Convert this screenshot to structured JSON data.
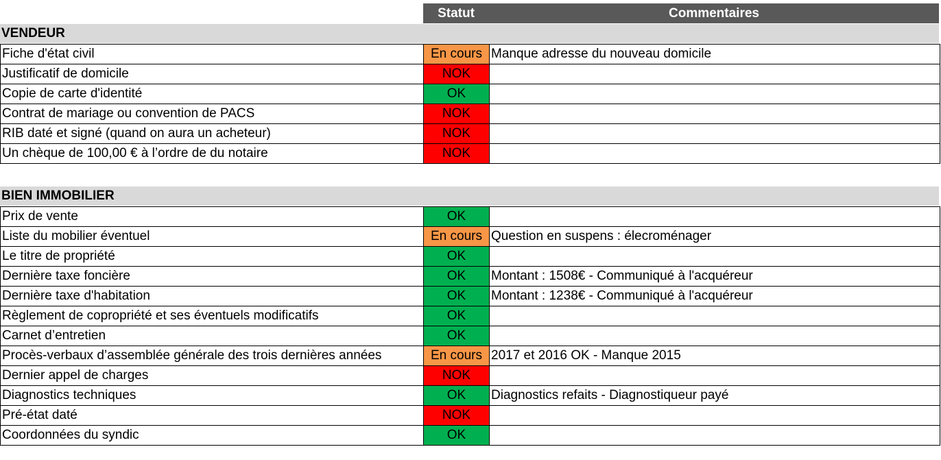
{
  "headers": {
    "status": "Statut",
    "comments": "Commentaires"
  },
  "status_colors": {
    "OK": "#00b050",
    "NOK": "#ff0000",
    "En cours": "#f79646"
  },
  "sections": [
    {
      "title": "VENDEUR",
      "rows": [
        {
          "label": "Fiche d'état civil",
          "status": "En cours",
          "comment": "Manque adresse du nouveau domicile"
        },
        {
          "label": "Justificatif de domicile",
          "status": "NOK",
          "comment": ""
        },
        {
          "label": "Copie de carte d'identité",
          "status": "OK",
          "comment": ""
        },
        {
          "label": "Contrat de mariage ou convention de PACS",
          "status": "NOK",
          "comment": ""
        },
        {
          "label": "RIB daté et signé (quand on aura un acheteur)",
          "status": "NOK",
          "comment": ""
        },
        {
          "label": "Un chèque de 100,00 € à l’ordre de du notaire",
          "status": "NOK",
          "comment": ""
        }
      ]
    },
    {
      "title": "BIEN IMMOBILIER",
      "rows": [
        {
          "label": "Prix de vente",
          "status": "OK",
          "comment": ""
        },
        {
          "label": "Liste du mobilier éventuel",
          "status": "En cours",
          "comment": "Question en suspens : élecroménager"
        },
        {
          "label": "Le titre de propriété",
          "status": "OK",
          "comment": ""
        },
        {
          "label": "Dernière taxe foncière",
          "status": "OK",
          "comment": "Montant : 1508€ - Communiqué à l'acquéreur"
        },
        {
          "label": "Dernière taxe d'habitation",
          "status": "OK",
          "comment": "Montant : 1238€ - Communiqué à l'acquéreur"
        },
        {
          "label": "Règlement de copropriété et ses éventuels modificatifs",
          "status": "OK",
          "comment": ""
        },
        {
          "label": "Carnet d’entretien",
          "status": "OK",
          "comment": ""
        },
        {
          "label": "Procès-verbaux d’assemblée générale des trois dernières années",
          "status": "En cours",
          "comment": "2017 et 2016 OK - Manque 2015"
        },
        {
          "label": "Dernier appel de charges",
          "status": "NOK",
          "comment": ""
        },
        {
          "label": "Diagnostics techniques",
          "status": "OK",
          "comment": "Diagnostics refaits - Diagnostiqueur payé"
        },
        {
          "label": "Pré-état daté",
          "status": "NOK",
          "comment": ""
        },
        {
          "label": "Coordonnées du syndic",
          "status": "OK",
          "comment": ""
        }
      ]
    }
  ]
}
